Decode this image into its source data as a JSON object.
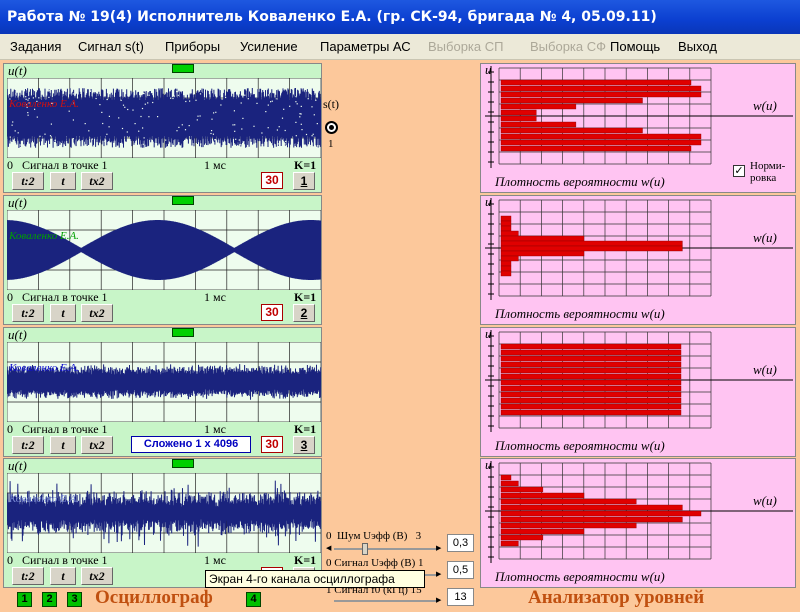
{
  "window": {
    "title": "Работа № 19(4)  Исполнитель Коваленко Е.А. (гр. СК-94, бригада № 4, 05.09.11)"
  },
  "menu": [
    {
      "label": "Задания",
      "disabled": false
    },
    {
      "label": "Сигнал s(t)",
      "disabled": false
    },
    {
      "label": "Приборы",
      "disabled": false
    },
    {
      "label": "Усиление",
      "disabled": false
    },
    {
      "label": "Параметры  АС",
      "disabled": false
    },
    {
      "label": "Выборка СП",
      "disabled": true
    },
    {
      "label": "Выборка СФ",
      "disabled": true
    },
    {
      "label": "Помощь",
      "disabled": false
    },
    {
      "label": "Выход",
      "disabled": false
    }
  ],
  "oscillograph": {
    "axis_label": "u(t)",
    "performer_name": "Коваленко Е.А.",
    "point_label": "Сигнал в точке 1",
    "time_label": "1 мс",
    "zero": "0",
    "gain": "K=1",
    "buttons": {
      "half": "t:2",
      "t": "t",
      "double": "tx2"
    },
    "count": "30",
    "channels": [
      {
        "number": "1",
        "name_color": "#d01010",
        "summed": ""
      },
      {
        "number": "2",
        "name_color": "#00a000",
        "summed": ""
      },
      {
        "number": "3",
        "name_color": "#1010d0",
        "summed": "Сложено 1 х 4096"
      },
      {
        "number": "4",
        "name_color": "#7080d0",
        "summed": ""
      }
    ],
    "footer_label": "Осциллограф",
    "channel_selectors": [
      "1",
      "2",
      "3",
      "4"
    ]
  },
  "center": {
    "signal_label": "s(t)",
    "signal_number": "1",
    "controls": [
      {
        "min": "0",
        "label": "Шум Uэфф (В)",
        "max": "3",
        "value": "0,3"
      },
      {
        "min": "0",
        "label": "Сигнал Uэфф (В)",
        "max": "1",
        "value": "0,5"
      },
      {
        "min": "1",
        "label": "Сигнал f0 (кГц)",
        "max": "15",
        "value": "13"
      }
    ]
  },
  "analyzer": {
    "axis_label": "w(u)",
    "density_label": "Плотность вероятности  w(u)",
    "normalize_label_1": "Норми-",
    "normalize_label_2": "ровка",
    "normalize_checked": "✓",
    "footer_label": "Анализатор уровней"
  },
  "tooltip": "Экран 4-го канала осциллографа",
  "colors": {
    "screen_trace": "#1a237e",
    "histogram": "#e00000",
    "osc_bg": "#c8f5c8",
    "analyzer_bg": "#ffc4f2",
    "center_bg": "#fcc89b"
  }
}
